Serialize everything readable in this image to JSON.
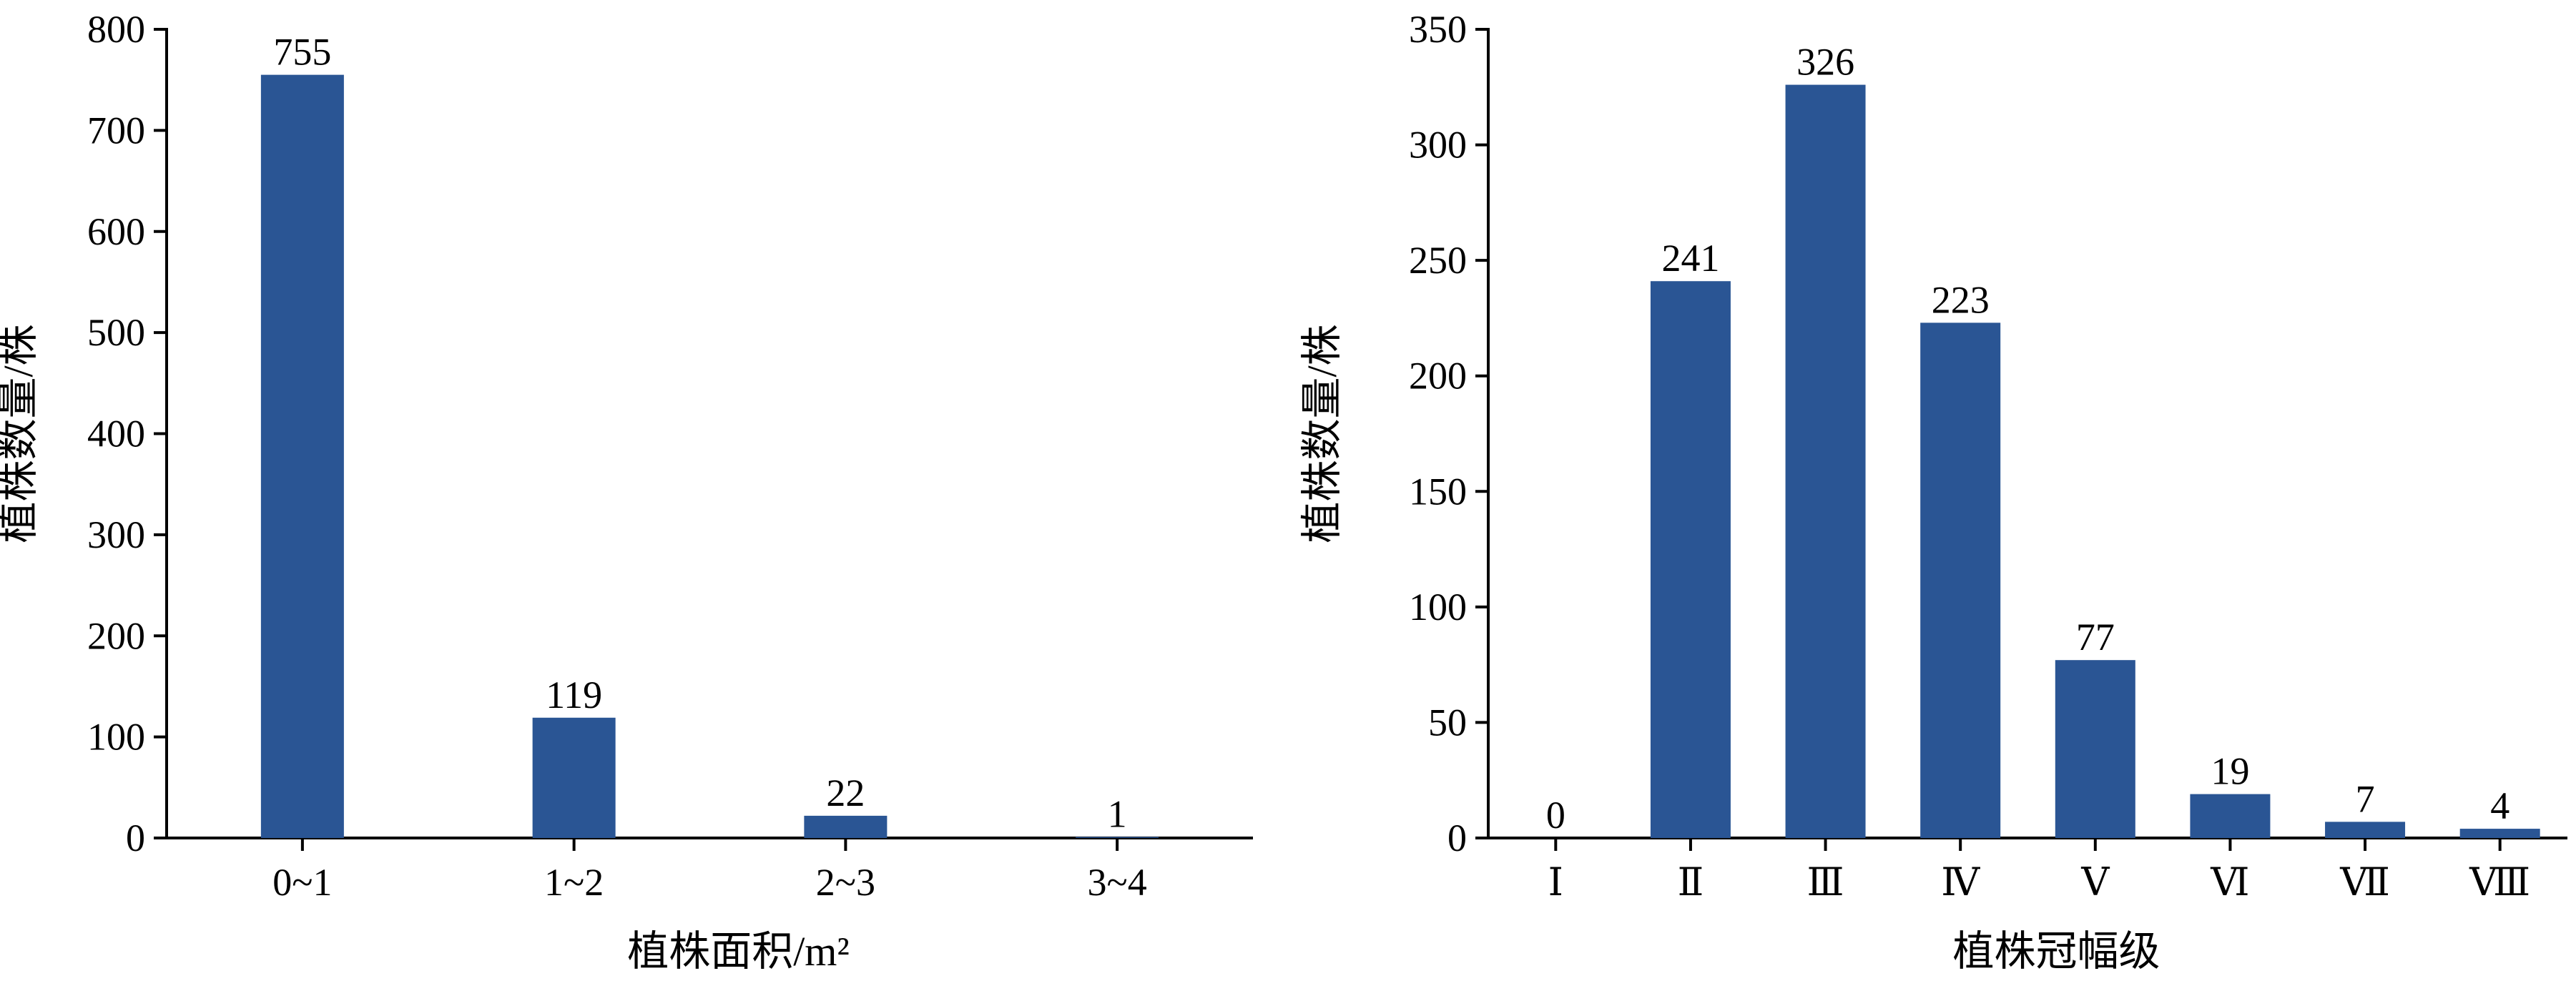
{
  "chart_data": [
    {
      "type": "bar",
      "categories": [
        "0~1",
        "1~2",
        "2~3",
        "3~4"
      ],
      "values": [
        755,
        119,
        22,
        1
      ],
      "data_labels": [
        "755",
        "119",
        "22",
        "1"
      ],
      "xlabel": "植株面积/m²",
      "ylabel": "植株数量/株",
      "ylim": [
        0,
        800
      ],
      "yticks": [
        0,
        100,
        200,
        300,
        400,
        500,
        600,
        700,
        800
      ],
      "grid": false,
      "bar_color": "#2a5594"
    },
    {
      "type": "bar",
      "categories": [
        "Ⅰ",
        "Ⅱ",
        "Ⅲ",
        "Ⅳ",
        "Ⅴ",
        "Ⅵ",
        "Ⅶ",
        "Ⅷ"
      ],
      "values": [
        0,
        241,
        326,
        223,
        77,
        19,
        7,
        4
      ],
      "data_labels": [
        "0",
        "241",
        "326",
        "223",
        "77",
        "19",
        "7",
        "4"
      ],
      "xlabel": "植株冠幅级",
      "ylabel": "植株数量/株",
      "ylim": [
        0,
        350
      ],
      "yticks": [
        0,
        50,
        100,
        150,
        200,
        250,
        300,
        350
      ],
      "grid": false,
      "bar_color": "#2a5594"
    }
  ]
}
